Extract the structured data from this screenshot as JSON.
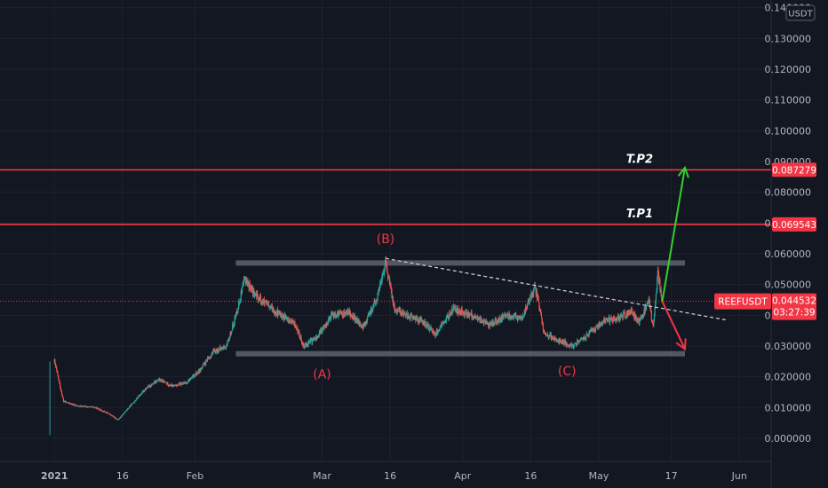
{
  "chart_data": {
    "type": "candlestick",
    "currency_label": "USDT",
    "symbol": "REEFUSDT",
    "y_ticks": [
      "0.140000",
      "0.130000",
      "0.120000",
      "0.110000",
      "0.100000",
      "0.090000",
      "0.080000",
      "0.070000",
      "0.060000",
      "0.050000",
      "0.040000",
      "0.030000",
      "0.020000",
      "0.010000",
      "0.000000"
    ],
    "y_values": [
      0.14,
      0.13,
      0.12,
      0.11,
      0.1,
      0.09,
      0.08,
      0.07,
      0.06,
      0.05,
      0.04,
      0.03,
      0.02,
      0.01,
      0.0
    ],
    "ylim": [
      -0.0075,
      0.1425
    ],
    "x_ticks": [
      {
        "label": "2021",
        "date": "2021-01-01",
        "bold": true
      },
      {
        "label": "16",
        "date": "2021-01-16"
      },
      {
        "label": "Feb",
        "date": "2021-02-01"
      },
      {
        "label": "Mar",
        "date": "2021-03-01"
      },
      {
        "label": "16",
        "date": "2021-03-16"
      },
      {
        "label": "Apr",
        "date": "2021-04-01"
      },
      {
        "label": "16",
        "date": "2021-04-16"
      },
      {
        "label": "May",
        "date": "2021-05-01"
      },
      {
        "label": "17",
        "date": "2021-05-17"
      },
      {
        "label": "Jun",
        "date": "2021-06-01"
      }
    ],
    "xlim": [
      "2020-12-20",
      "2021-06-08"
    ],
    "price_path": [
      [
        "2020-12-31",
        0.001
      ],
      [
        "2021-01-01",
        0.025
      ],
      [
        "2021-01-03",
        0.012
      ],
      [
        "2021-01-06",
        0.0105
      ],
      [
        "2021-01-10",
        0.01
      ],
      [
        "2021-01-13",
        0.008
      ],
      [
        "2021-01-15",
        0.006
      ],
      [
        "2021-01-18",
        0.011
      ],
      [
        "2021-01-21",
        0.016
      ],
      [
        "2021-01-24",
        0.019
      ],
      [
        "2021-01-27",
        0.017
      ],
      [
        "2021-01-30",
        0.018
      ],
      [
        "2021-02-02",
        0.022
      ],
      [
        "2021-02-05",
        0.028
      ],
      [
        "2021-02-08",
        0.03
      ],
      [
        "2021-02-10",
        0.04
      ],
      [
        "2021-02-12",
        0.052
      ],
      [
        "2021-02-14",
        0.047
      ],
      [
        "2021-02-17",
        0.043
      ],
      [
        "2021-02-20",
        0.04
      ],
      [
        "2021-02-23",
        0.037
      ],
      [
        "2021-02-25",
        0.03
      ],
      [
        "2021-02-28",
        0.033
      ],
      [
        "2021-03-03",
        0.04
      ],
      [
        "2021-03-07",
        0.041
      ],
      [
        "2021-03-10",
        0.036
      ],
      [
        "2021-03-13",
        0.045
      ],
      [
        "2021-03-15",
        0.057
      ],
      [
        "2021-03-17",
        0.042
      ],
      [
        "2021-03-20",
        0.04
      ],
      [
        "2021-03-23",
        0.038
      ],
      [
        "2021-03-26",
        0.034
      ],
      [
        "2021-03-30",
        0.042
      ],
      [
        "2021-04-03",
        0.04
      ],
      [
        "2021-04-07",
        0.037
      ],
      [
        "2021-04-11",
        0.04
      ],
      [
        "2021-04-14",
        0.039
      ],
      [
        "2021-04-17",
        0.049
      ],
      [
        "2021-04-19",
        0.034
      ],
      [
        "2021-04-22",
        0.032
      ],
      [
        "2021-04-25",
        0.03
      ],
      [
        "2021-04-28",
        0.033
      ],
      [
        "2021-05-02",
        0.038
      ],
      [
        "2021-05-05",
        0.039
      ],
      [
        "2021-05-08",
        0.041
      ],
      [
        "2021-05-10",
        0.038
      ],
      [
        "2021-05-12",
        0.045
      ],
      [
        "2021-05-13",
        0.036
      ],
      [
        "2021-05-14",
        0.054
      ],
      [
        "2021-05-15",
        0.0445
      ]
    ],
    "horizontal_levels": [
      {
        "price": 0.087279,
        "label": "0.087279",
        "annotation": "T.P2"
      },
      {
        "price": 0.069543,
        "label": "0.069543",
        "annotation": "T.P1"
      }
    ],
    "last_price": {
      "price": 0.044532,
      "label": "0.044532",
      "symbol": "REEFUSDT",
      "countdown": "03:27:39"
    },
    "range_box": {
      "top": 0.057,
      "bottom": 0.0275,
      "start": "2021-02-10",
      "end": "2021-05-20"
    },
    "trendline": {
      "from": [
        "2021-03-15",
        0.0585
      ],
      "to": [
        "2021-05-29",
        0.0385
      ]
    },
    "arrows": {
      "up": {
        "from": [
          "2021-05-15",
          0.0445
        ],
        "to": [
          "2021-05-20",
          0.088
        ],
        "color": "#33d12b"
      },
      "down": {
        "from": [
          "2021-05-15",
          0.0445
        ],
        "to": [
          "2021-05-20",
          0.029
        ],
        "color": "#f23645"
      }
    },
    "wave_labels": [
      {
        "text": "(A)",
        "date": "2021-03-01",
        "price": 0.0195
      },
      {
        "text": "(B)",
        "date": "2021-03-15",
        "price": 0.0635
      },
      {
        "text": "(C)",
        "date": "2021-04-24",
        "price": 0.0205
      }
    ],
    "grid": true,
    "colors": {
      "background": "#131722",
      "grid": "#1e222d",
      "text": "#b2b5be",
      "level": "#f23645",
      "up": "#26a69a",
      "down": "#ef5350",
      "box": "#6a6d78",
      "trend": "#d1d4dc",
      "label": "#f23645"
    }
  }
}
